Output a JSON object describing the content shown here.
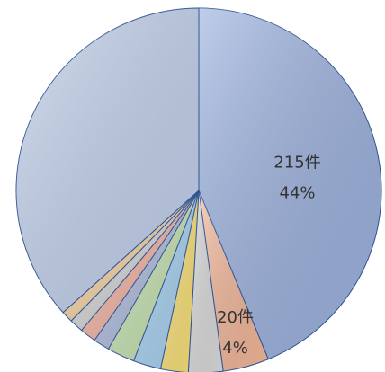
{
  "chart_data": {
    "type": "pie",
    "start_angle_deg": 0,
    "direction": "clockwise",
    "slices": [
      {
        "value": 215,
        "share": 44,
        "label_count": "215件",
        "label_pct": "44%",
        "color": "#9db3e0"
      },
      {
        "value": 20,
        "share": 4,
        "label_count": "20件",
        "label_pct": "4%",
        "color": "#f4b89a"
      },
      {
        "value": 15,
        "share": 3,
        "label_count": "",
        "label_pct": "",
        "color": "#dcdcdc"
      },
      {
        "value": 12,
        "share": 2.5,
        "label_count": "",
        "label_pct": "",
        "color": "#fbe278"
      },
      {
        "value": 12,
        "share": 2.5,
        "label_count": "",
        "label_pct": "",
        "color": "#a9d2f2"
      },
      {
        "value": 12,
        "share": 2.5,
        "label_count": "",
        "label_pct": "",
        "color": "#c7e3b1"
      },
      {
        "value": 7,
        "share": 1.4,
        "label_count": "",
        "label_pct": "",
        "color": "#b0bdde"
      },
      {
        "value": 7,
        "share": 1.4,
        "label_count": "",
        "label_pct": "",
        "color": "#f4b4a4"
      },
      {
        "value": 6,
        "share": 1.2,
        "label_count": "",
        "label_pct": "",
        "color": "#d6d6d6"
      },
      {
        "value": 5,
        "share": 1.0,
        "label_count": "",
        "label_pct": "",
        "color": "#f6d3a2"
      },
      {
        "value": 180,
        "share": 37,
        "label_count": "",
        "label_pct": "",
        "color": "#c4d3ee"
      }
    ],
    "title": "",
    "legend": "none"
  }
}
